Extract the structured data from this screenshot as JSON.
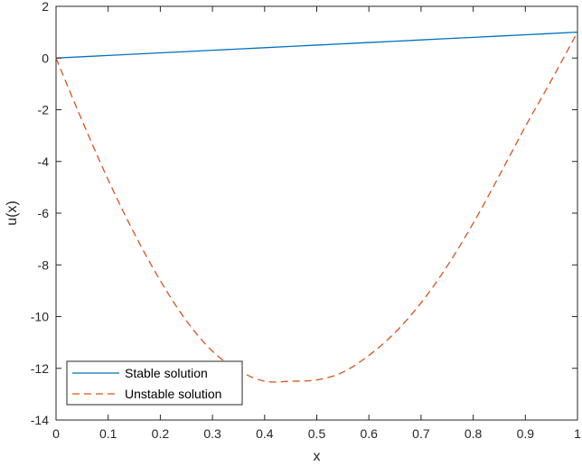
{
  "chart_data": {
    "type": "line",
    "xlabel": "x",
    "ylabel": "u(x)",
    "xlim": [
      0,
      1
    ],
    "ylim": [
      -14,
      2
    ],
    "x_ticks": [
      0,
      0.1,
      0.2,
      0.3,
      0.4,
      0.5,
      0.6,
      0.7,
      0.8,
      0.9,
      1
    ],
    "x_tick_labels": [
      "0",
      "0.1",
      "0.2",
      "0.3",
      "0.4",
      "0.5",
      "0.6",
      "0.7",
      "0.8",
      "0.9",
      "1"
    ],
    "y_ticks": [
      2,
      0,
      -2,
      -4,
      -6,
      -8,
      -10,
      -12,
      -14
    ],
    "y_tick_labels": [
      "2",
      "0",
      "-2",
      "-4",
      "-6",
      "-8",
      "-10",
      "-12",
      "-14"
    ],
    "grid": false,
    "legend_position": "bottom-left",
    "series": [
      {
        "name": "Stable solution",
        "color": "#0072BD",
        "style": "solid",
        "x": [
          0,
          0.1,
          0.2,
          0.3,
          0.4,
          0.5,
          0.6,
          0.7,
          0.8,
          0.9,
          1
        ],
        "y": [
          0,
          0.1,
          0.2,
          0.3,
          0.4,
          0.5,
          0.6,
          0.7,
          0.8,
          0.9,
          1
        ]
      },
      {
        "name": "Unstable solution",
        "color": "#D95319",
        "style": "dashed",
        "x": [
          0,
          0.05,
          0.1,
          0.15,
          0.2,
          0.25,
          0.3,
          0.35,
          0.4,
          0.45,
          0.5,
          0.55,
          0.6,
          0.65,
          0.7,
          0.75,
          0.8,
          0.85,
          0.9,
          0.95,
          1
        ],
        "y": [
          0,
          -2.42,
          -4.71,
          -6.78,
          -8.61,
          -10.16,
          -11.34,
          -12.08,
          -12.5,
          -12.5,
          -12.45,
          -12.15,
          -11.5,
          -10.62,
          -9.47,
          -8.05,
          -6.39,
          -4.55,
          -2.65,
          -0.86,
          1
        ]
      }
    ]
  }
}
